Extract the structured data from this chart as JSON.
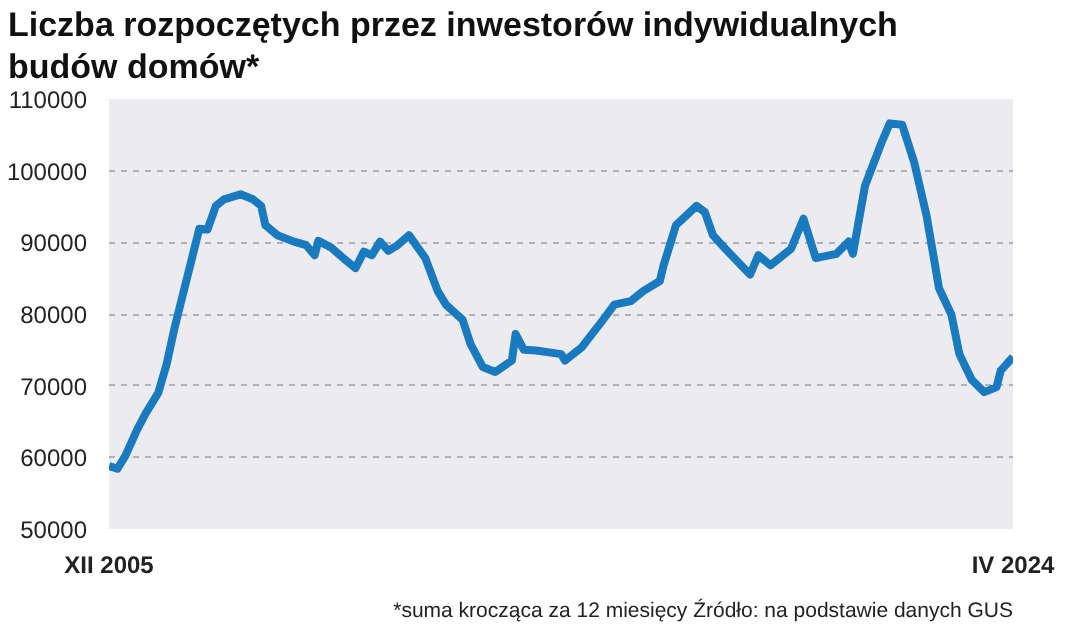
{
  "chart_data": {
    "type": "line",
    "title": "Liczba rozpoczętych przez inwestorów indywidualnych budów domów*",
    "x": [
      "2005-12",
      "2006-02",
      "2006-04",
      "2006-07",
      "2006-09",
      "2006-12",
      "2007-02",
      "2007-04",
      "2007-06",
      "2007-08",
      "2007-10",
      "2007-12",
      "2008-02",
      "2008-04",
      "2008-08",
      "2008-11",
      "2009-01",
      "2009-02",
      "2009-05",
      "2009-09",
      "2009-12",
      "2010-02",
      "2010-03",
      "2010-06",
      "2010-09",
      "2010-12",
      "2011-02",
      "2011-04",
      "2011-06",
      "2011-08",
      "2011-10",
      "2012-01",
      "2012-05",
      "2012-08",
      "2012-10",
      "2013-02",
      "2013-04",
      "2013-07",
      "2013-10",
      "2014-02",
      "2014-03",
      "2014-05",
      "2014-08",
      "2015-02",
      "2015-03",
      "2015-07",
      "2015-12",
      "2016-03",
      "2016-07",
      "2016-10",
      "2017-02",
      "2017-03",
      "2017-06",
      "2017-11",
      "2018-01",
      "2018-03",
      "2018-06",
      "2018-12",
      "2019-02",
      "2019-05",
      "2019-10",
      "2020-01",
      "2020-04",
      "2020-09",
      "2020-12",
      "2021-01",
      "2021-04",
      "2021-08",
      "2021-10",
      "2022-01",
      "2022-04",
      "2022-07",
      "2022-10",
      "2023-01",
      "2023-03",
      "2023-06",
      "2023-09",
      "2023-12",
      "2024-01",
      "2024-04"
    ],
    "series": [
      {
        "color": "#1a7abf",
        "values": [
          58800,
          58400,
          60200,
          64000,
          66200,
          69000,
          73000,
          78100,
          82700,
          87300,
          91900,
          91800,
          95100,
          96000,
          96700,
          96000,
          95100,
          92400,
          91000,
          90100,
          89600,
          88200,
          90200,
          89300,
          87800,
          86400,
          88700,
          88200,
          90100,
          88800,
          89500,
          91000,
          87800,
          83200,
          81300,
          79200,
          75800,
          72600,
          71900,
          73500,
          77200,
          75000,
          74900,
          74400,
          73500,
          75300,
          79000,
          81300,
          81800,
          83200,
          84600,
          86800,
          92400,
          95100,
          94200,
          91000,
          89100,
          85500,
          88200,
          86800,
          89100,
          93300,
          87800,
          88400,
          90100,
          88400,
          97900,
          103900,
          106600,
          106400,
          101100,
          93700,
          83600,
          79900,
          74400,
          70800,
          69100,
          69800,
          72100,
          74000
        ]
      }
    ],
    "xlim": [
      "2005-12",
      "2024-04"
    ],
    "xticks": [
      {
        "value": "2005-12",
        "label": "XII 2005"
      },
      {
        "value": "2024-04",
        "label": "IV 2024"
      }
    ],
    "ylim": [
      50000,
      110000
    ],
    "yticks": [
      50000,
      60000,
      70000,
      80000,
      90000,
      100000,
      110000
    ],
    "grid": "y",
    "marker": "none",
    "line_style": "solid",
    "annotations": [
      "*suma krocząca za 12 miesięcy Źródło: na podstawie danych GUS"
    ]
  }
}
